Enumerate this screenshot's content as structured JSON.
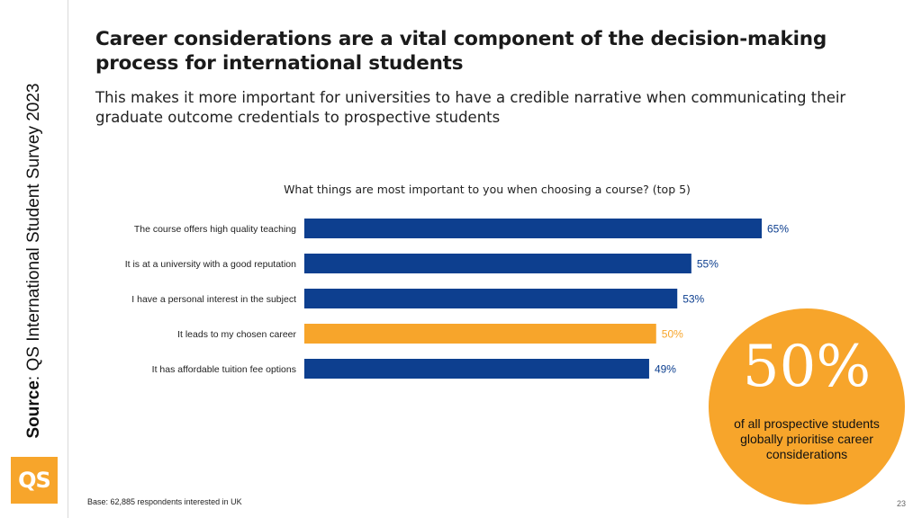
{
  "title": "Career considerations are a vital component of the decision-making process for international students",
  "subtitle": "This makes it more important for universities to have a credible narrative when communicating their graduate outcome credentials to prospective students",
  "source": {
    "label": "Source",
    "text": ": QS International Student Survey 2023"
  },
  "logo_text": "QS",
  "callout": {
    "value": "50%",
    "text": "of all prospective students globally prioritise career considerations"
  },
  "footer": {
    "base_note": "Base: 62,885 respondents interested in UK",
    "page_number": "23"
  },
  "colors": {
    "primary": "#0d3f8f",
    "accent": "#f7a52b"
  },
  "chart_data": {
    "type": "bar",
    "orientation": "horizontal",
    "title": "What things are most important to you when choosing a course? (top 5)",
    "categories": [
      "The course offers high quality teaching",
      "It is at a university with a good reputation",
      "I have a personal interest in the subject",
      "It leads to my chosen career",
      "It has affordable tuition fee options"
    ],
    "values": [
      65,
      55,
      53,
      50,
      49
    ],
    "value_labels": [
      "65%",
      "55%",
      "53%",
      "50%",
      "49%"
    ],
    "highlight_index": 3,
    "xlim": [
      0,
      65
    ],
    "grid": false,
    "legend": "none"
  }
}
